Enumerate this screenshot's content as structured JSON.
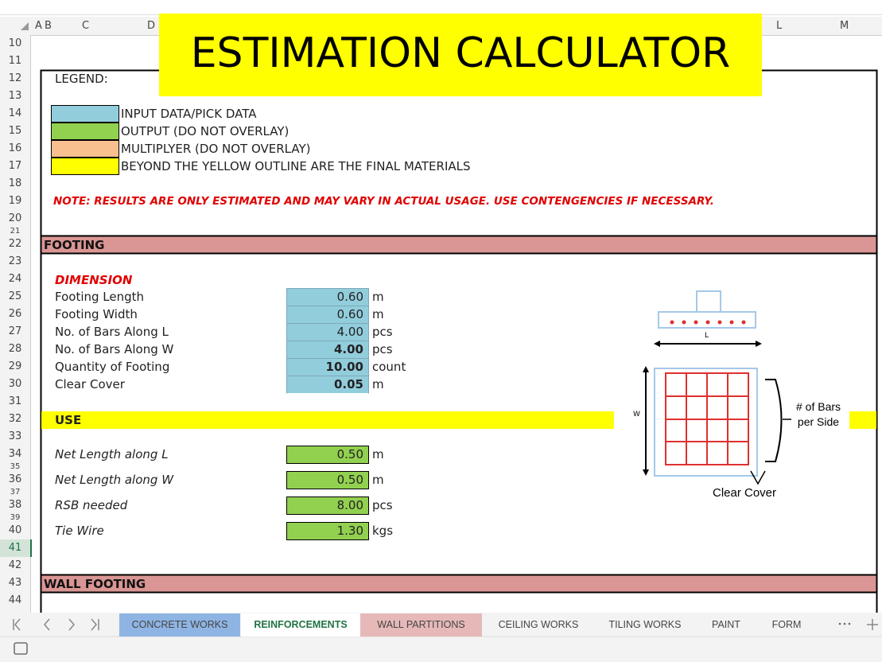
{
  "column_headers": [
    "A",
    "B",
    "C",
    "D",
    "L",
    "M"
  ],
  "row_numbers": [
    10,
    11,
    12,
    13,
    14,
    15,
    16,
    17,
    18,
    19,
    20,
    21,
    22,
    23,
    24,
    25,
    26,
    27,
    28,
    29,
    30,
    31,
    32,
    33,
    34,
    35,
    36,
    37,
    38,
    39,
    40,
    41,
    42,
    43,
    44
  ],
  "active_row": 41,
  "title": "ESTIMATION CALCULATOR",
  "legend": {
    "label": "LEGEND:",
    "items": [
      {
        "text": "INPUT DATA/PICK DATA",
        "color": "#92cddc"
      },
      {
        "text": "OUTPUT (DO NOT OVERLAY)",
        "color": "#92d050"
      },
      {
        "text": "MULTIPLYER (DO NOT OVERLAY)",
        "color": "#fabf8f"
      },
      {
        "text": "BEYOND THE YELLOW OUTLINE ARE THE FINAL MATERIALS",
        "color": "#ffff00"
      }
    ]
  },
  "note": "NOTE: RESULTS ARE ONLY ESTIMATED AND MAY VARY IN ACTUAL USAGE. USE CONTENGENCIES IF NECESSARY.",
  "footing": {
    "header": "FOOTING",
    "dimension": {
      "label": "DIMENSION",
      "fields": [
        {
          "label": "Footing Length",
          "value": "0.60",
          "unit": "m"
        },
        {
          "label": "Footing Width",
          "value": "0.60",
          "unit": "m"
        },
        {
          "label": "No. of Bars Along L",
          "value": "4.00",
          "unit": "pcs"
        },
        {
          "label": "No. of Bars Along W",
          "value": "4.00",
          "unit": "pcs",
          "bold": true
        },
        {
          "label": "Quantity of Footing",
          "value": "10.00",
          "unit": "count",
          "bold": true
        },
        {
          "label": "Clear Cover",
          "value": "0.05",
          "unit": "m",
          "bold": true
        }
      ]
    },
    "use": {
      "label": "USE",
      "fields": [
        {
          "label": "Net Length along L",
          "value": "0.50",
          "unit": "m"
        },
        {
          "label": "Net Length along W",
          "value": "0.50",
          "unit": "m"
        },
        {
          "label": "RSB needed",
          "value": "8.00",
          "unit": "pcs"
        },
        {
          "label": "Tie Wire",
          "value": "1.30",
          "unit": "kgs"
        }
      ]
    },
    "diagram": {
      "length_label": "L",
      "width_label": "W",
      "bars_label": "# of Bars per Side",
      "cover_label": "Clear Cover"
    }
  },
  "wall_footing": {
    "header": "WALL FOOTING"
  },
  "sheet_tabs": [
    {
      "name": "CONCRETE WORKS",
      "color": "#8eb4e3"
    },
    {
      "name": "REINFORCEMENTS",
      "active": true
    },
    {
      "name": "WALL PARTITIONS",
      "color": "#e6b9b8"
    },
    {
      "name": "CEILING WORKS"
    },
    {
      "name": "TILING WORKS"
    },
    {
      "name": "PAINT"
    },
    {
      "name": "FORM"
    }
  ]
}
